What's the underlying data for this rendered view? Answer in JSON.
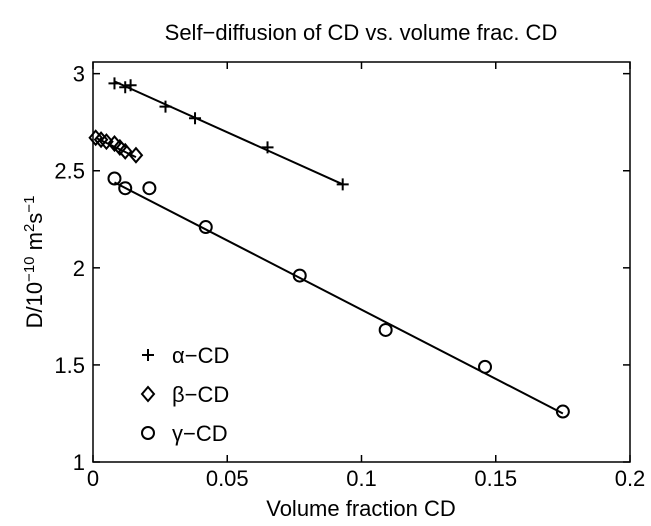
{
  "chart_data": {
    "type": "scatter",
    "title": "Self−diffusion of CD vs. volume frac. CD",
    "xlabel": "Volume fraction CD",
    "ylabel_parts": [
      {
        "text": "D/10"
      },
      {
        "text": "−10",
        "sup": true
      },
      {
        "text": " m"
      },
      {
        "text": "2",
        "sup": true
      },
      {
        "text": "s"
      },
      {
        "text": "−1",
        "sup": true
      }
    ],
    "xlim": [
      0,
      0.2
    ],
    "xticks": [
      0,
      0.05,
      0.1,
      0.15,
      0.2
    ],
    "ylim": [
      1,
      3.06
    ],
    "yticks": [
      1,
      1.5,
      2,
      2.5,
      3
    ],
    "legend": "lower-left",
    "series": [
      {
        "name": "α−CD",
        "marker": "plus",
        "color": "#000000",
        "x": [
          0.008,
          0.012,
          0.014,
          0.027,
          0.038,
          0.065,
          0.093
        ],
        "values": [
          2.95,
          2.93,
          2.94,
          2.83,
          2.77,
          2.62,
          2.43
        ],
        "fit": {
          "x": [
            0.008,
            0.093
          ],
          "y": [
            2.96,
            2.43
          ]
        }
      },
      {
        "name": "β−CD",
        "marker": "diamond",
        "color": "#000000",
        "x": [
          0.001,
          0.003,
          0.005,
          0.008,
          0.01,
          0.012,
          0.016
        ],
        "values": [
          2.67,
          2.66,
          2.65,
          2.64,
          2.62,
          2.6,
          2.58
        ],
        "fit": {
          "x": [
            0.001,
            0.016
          ],
          "y": [
            2.67,
            2.57
          ]
        }
      },
      {
        "name": "γ−CD",
        "marker": "circle",
        "color": "#000000",
        "x": [
          0.008,
          0.012,
          0.021,
          0.042,
          0.077,
          0.109,
          0.146,
          0.175
        ],
        "values": [
          2.46,
          2.41,
          2.41,
          2.21,
          1.96,
          1.68,
          1.49,
          1.26
        ],
        "fit": {
          "x": [
            0.008,
            0.175
          ],
          "y": [
            2.44,
            1.25
          ]
        }
      }
    ]
  }
}
